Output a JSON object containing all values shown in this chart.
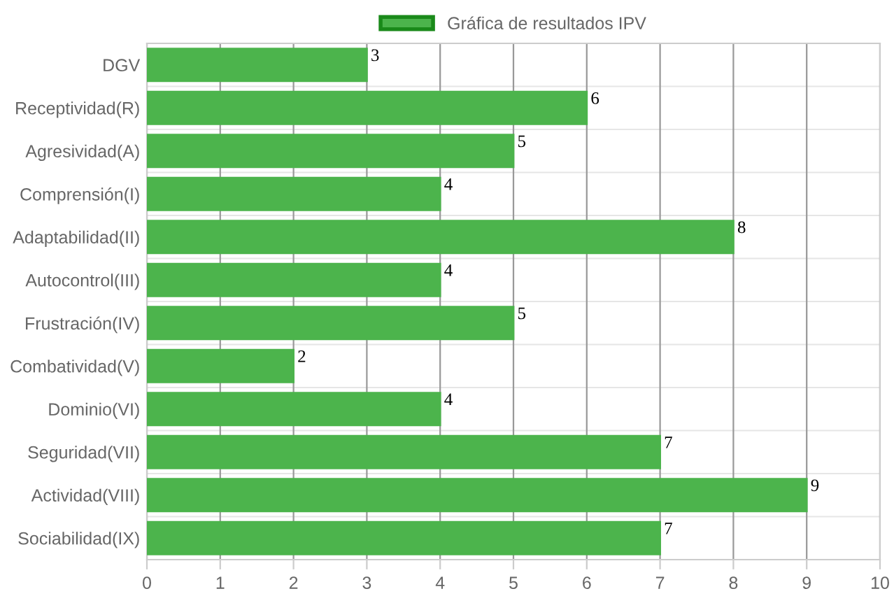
{
  "chart_data": {
    "type": "bar",
    "orientation": "horizontal",
    "categories": [
      "DGV",
      "Receptividad(R)",
      "Agresividad(A)",
      "Comprensión(I)",
      "Adaptabilidad(II)",
      "Autocontrol(III)",
      "Frustración(IV)",
      "Combatividad(V)",
      "Dominio(VI)",
      "Seguridad(VII)",
      "Actividad(VIII)",
      "Sociabilidad(IX)"
    ],
    "series": [
      {
        "name": "Gráfica de resultados IPV",
        "color": "#4cb44c",
        "values": [
          3,
          6,
          5,
          4,
          8,
          4,
          5,
          2,
          4,
          7,
          9,
          7
        ]
      }
    ],
    "xlim": [
      0,
      10
    ],
    "xticks": [
      0,
      1,
      2,
      3,
      4,
      5,
      6,
      7,
      8,
      9,
      10
    ],
    "grid": true,
    "legend": "top",
    "data_labels": true
  }
}
